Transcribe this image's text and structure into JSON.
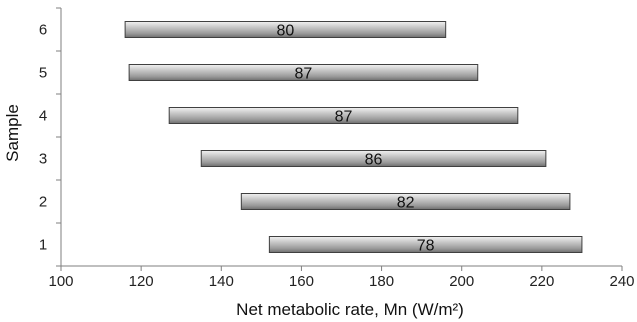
{
  "chart_data": {
    "type": "bar",
    "orientation": "horizontal",
    "subtype": "floating-range",
    "xlabel": "Net metabolic rate, Mn (W/m²)",
    "ylabel": "Sample",
    "xlim": [
      100,
      240
    ],
    "xticks": [
      100,
      120,
      140,
      160,
      180,
      200,
      220,
      240
    ],
    "categories": [
      "1",
      "2",
      "3",
      "4",
      "5",
      "6"
    ],
    "series": [
      {
        "ranges": [
          {
            "category": "1",
            "start": 152,
            "end": 230,
            "label": "78"
          },
          {
            "category": "2",
            "start": 145,
            "end": 227,
            "label": "82"
          },
          {
            "category": "3",
            "start": 135,
            "end": 221,
            "label": "86"
          },
          {
            "category": "4",
            "start": 127,
            "end": 214,
            "label": "87"
          },
          {
            "category": "5",
            "start": 117,
            "end": 204,
            "label": "87"
          },
          {
            "category": "6",
            "start": 116,
            "end": 196,
            "label": "80"
          }
        ]
      }
    ],
    "grid": false,
    "legend": "none",
    "colors": {
      "bar_light": "#d9d9d9",
      "bar_mid": "#a6a6a6",
      "bar_dark": "#6e6e6e",
      "bar_stroke": "#404040",
      "axis": "#7f7f7f"
    }
  }
}
